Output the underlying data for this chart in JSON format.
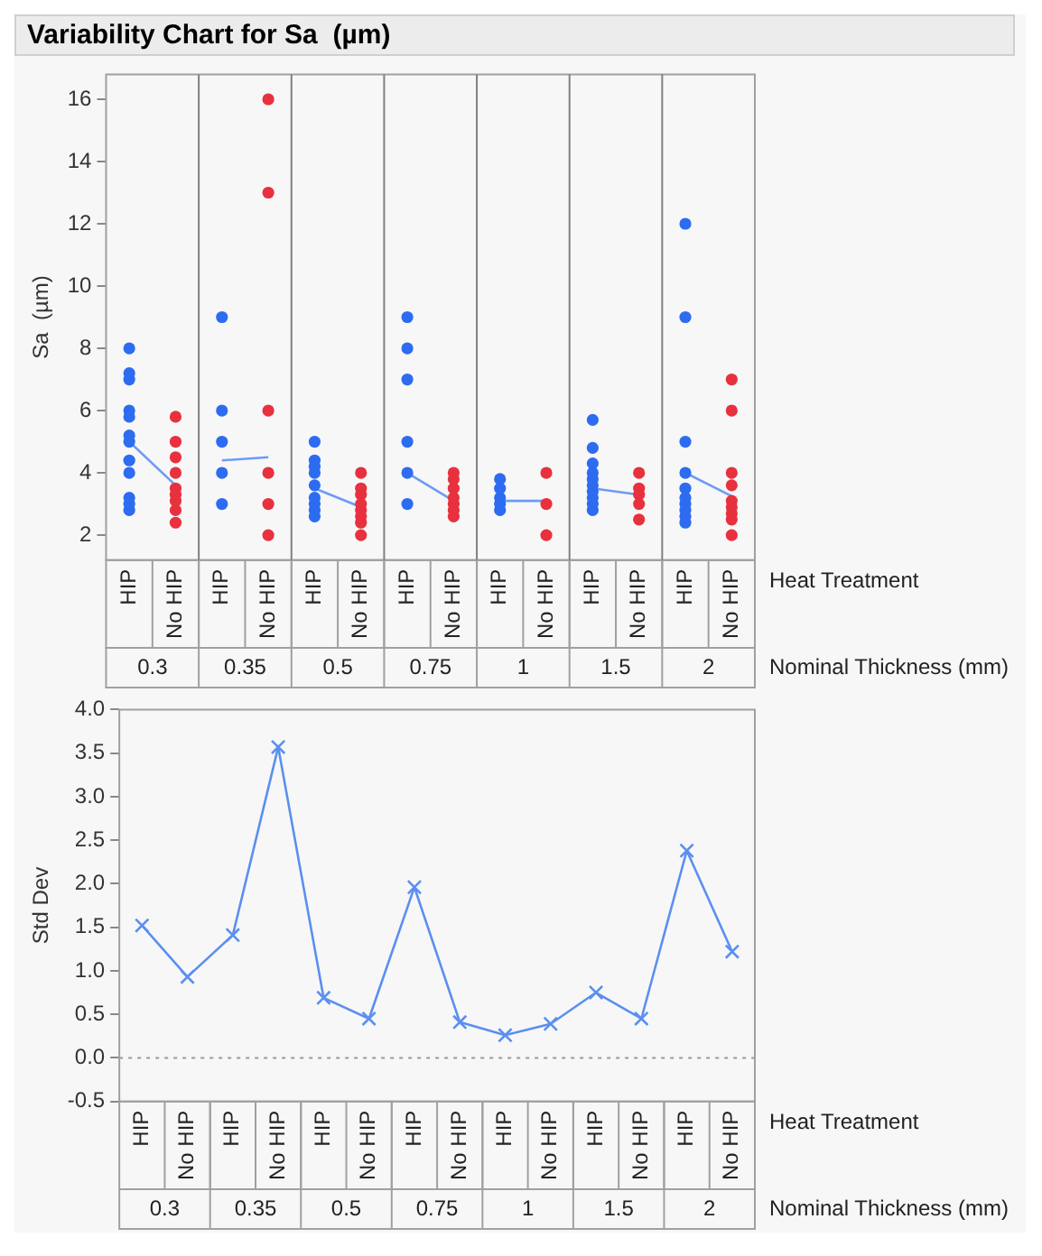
{
  "chart_data": [
    {
      "type": "scatter",
      "title": "Variability Chart for Sa  (µm)",
      "ylabel": "Sa  (µm)",
      "xlabel": "Heat Treatment",
      "categories": [
        "HIP",
        "No HIP",
        "HIP",
        "No HIP",
        "HIP",
        "No HIP",
        "HIP",
        "No HIP",
        "HIP",
        "No HIP",
        "HIP",
        "No HIP",
        "HIP",
        "No HIP"
      ],
      "ylim": [
        1.2,
        16.8
      ],
      "yticks": [
        2,
        4,
        6,
        8,
        10,
        12,
        14,
        16
      ],
      "grid": false,
      "marker": "circle",
      "annotations": [
        "Nominal Thickness (mm)",
        "0.3",
        "0.35",
        "0.5",
        "0.75",
        "1",
        "1.5",
        "2"
      ],
      "series": [
        {
          "colors": [
            "#2d6cf0",
            "#e8313e",
            "#2d6cf0",
            "#e8313e",
            "#2d6cf0",
            "#e8313e",
            "#2d6cf0",
            "#e8313e",
            "#2d6cf0",
            "#e8313e",
            "#2d6cf0",
            "#e8313e",
            "#2d6cf0",
            "#e8313e"
          ],
          "values": [
            8,
            5.8,
            9,
            16,
            5,
            4,
            9,
            4,
            3.8,
            4,
            5.7,
            4,
            12,
            7
          ]
        },
        {
          "colors": [
            "#2d6cf0",
            "#e8313e",
            "#2d6cf0",
            "#e8313e",
            "#2d6cf0",
            "#e8313e",
            "#2d6cf0",
            "#e8313e",
            "#2d6cf0",
            "#e8313e",
            "#2d6cf0",
            "#e8313e",
            "#2d6cf0",
            "#e8313e"
          ],
          "values": [
            7.2,
            5,
            6,
            13,
            4.4,
            3.5,
            8,
            3.8,
            3.5,
            3,
            4.8,
            3.5,
            9,
            6
          ]
        },
        {
          "colors": [
            "#2d6cf0",
            "#e8313e",
            "#2d6cf0",
            "#e8313e",
            "#2d6cf0",
            "#e8313e",
            "#2d6cf0",
            "#e8313e",
            "#2d6cf0",
            "#e8313e",
            "#2d6cf0",
            "#e8313e",
            "#2d6cf0",
            "#e8313e"
          ],
          "values": [
            7,
            4.5,
            5,
            6,
            4.2,
            3.3,
            7,
            3.5,
            3.2,
            2,
            4.3,
            3.3,
            5,
            4
          ]
        },
        {
          "colors": [
            "#2d6cf0",
            "#e8313e",
            "#2d6cf0",
            "#e8313e",
            "#2d6cf0",
            "#e8313e",
            "#2d6cf0",
            "#e8313e",
            "#2d6cf0",
            "#e8313e",
            "#2d6cf0",
            "#e8313e",
            "#2d6cf0",
            "#e8313e"
          ],
          "values": [
            6,
            4,
            4,
            4,
            4,
            3,
            5,
            3.2,
            3,
            null,
            4,
            3,
            4,
            3.6
          ]
        },
        {
          "colors": [
            "#2d6cf0",
            "#e8313e",
            "#2d6cf0",
            "#e8313e",
            "#2d6cf0",
            "#e8313e",
            "#2d6cf0",
            "#e8313e",
            "#2d6cf0",
            "#e8313e",
            "#2d6cf0",
            "#e8313e",
            "#2d6cf0",
            "#e8313e"
          ],
          "values": [
            5.8,
            3.5,
            3,
            3,
            3.6,
            2.8,
            4,
            3,
            2.8,
            null,
            3.8,
            2.5,
            3.5,
            3.1
          ]
        },
        {
          "colors": [
            "#2d6cf0",
            "#e8313e",
            "#2d6cf0",
            "#e8313e",
            "#2d6cf0",
            "#e8313e",
            "#2d6cf0",
            "#e8313e",
            "#2d6cf0",
            "#e8313e",
            "#2d6cf0",
            "#e8313e",
            "#2d6cf0",
            "#e8313e"
          ],
          "values": [
            5.2,
            3.3,
            null,
            2,
            3.2,
            2.6,
            3,
            2.8,
            null,
            null,
            3.6,
            null,
            3.2,
            2.9
          ]
        },
        {
          "colors": [
            "#2d6cf0",
            "#e8313e",
            "#2d6cf0",
            "#e8313e",
            "#2d6cf0",
            "#e8313e",
            "#2d6cf0",
            "#e8313e",
            "#2d6cf0",
            "#e8313e",
            "#2d6cf0",
            "#e8313e",
            "#2d6cf0",
            "#e8313e"
          ],
          "values": [
            5,
            3.1,
            null,
            null,
            3,
            2.4,
            null,
            2.6,
            null,
            null,
            3.4,
            null,
            3,
            2.7
          ]
        },
        {
          "colors": [
            "#2d6cf0",
            "#e8313e",
            "#2d6cf0",
            "#e8313e",
            "#2d6cf0",
            "#e8313e",
            "#2d6cf0",
            "#e8313e",
            "#2d6cf0",
            "#e8313e",
            "#2d6cf0",
            "#e8313e",
            "#2d6cf0",
            "#e8313e"
          ],
          "values": [
            4.4,
            null,
            null,
            null,
            2.8,
            2,
            null,
            null,
            null,
            null,
            3.2,
            null,
            2.8,
            2.5
          ]
        },
        {
          "colors": [
            "#2d6cf0",
            "#e8313e",
            "#2d6cf0",
            "#e8313e",
            "#2d6cf0",
            "#e8313e",
            "#2d6cf0",
            "#e8313e",
            "#2d6cf0",
            "#e8313e",
            "#2d6cf0",
            "#e8313e",
            "#2d6cf0",
            "#e8313e"
          ],
          "values": [
            4,
            2.8,
            null,
            null,
            2.6,
            null,
            null,
            null,
            null,
            null,
            3,
            null,
            2.6,
            2
          ]
        },
        {
          "colors": [
            "#2d6cf0",
            "#e8313e",
            "#2d6cf0",
            "#e8313e",
            "#2d6cf0",
            "#e8313e",
            "#2d6cf0",
            "#e8313e",
            "#2d6cf0",
            "#e8313e",
            "#2d6cf0",
            "#e8313e",
            "#2d6cf0",
            "#e8313e"
          ],
          "values": [
            3.2,
            2.4,
            null,
            null,
            null,
            null,
            null,
            null,
            null,
            null,
            2.8,
            null,
            2.4,
            null
          ]
        },
        {
          "colors": [
            "#2d6cf0",
            "#e8313e",
            "#2d6cf0",
            "#e8313e",
            "#2d6cf0",
            "#e8313e",
            "#2d6cf0",
            "#e8313e",
            "#2d6cf0",
            "#e8313e",
            "#2d6cf0",
            "#e8313e",
            "#2d6cf0",
            "#e8313e"
          ],
          "values": [
            3,
            null,
            null,
            null,
            null,
            null,
            null,
            null,
            null,
            null,
            null,
            null,
            null,
            null
          ]
        },
        {
          "colors": [
            "#2d6cf0",
            "#e8313e",
            "#2d6cf0",
            "#e8313e",
            "#2d6cf0",
            "#e8313e",
            "#2d6cf0",
            "#e8313e",
            "#2d6cf0",
            "#e8313e",
            "#2d6cf0",
            "#e8313e",
            "#2d6cf0",
            "#e8313e"
          ],
          "values": [
            2.8,
            null,
            null,
            null,
            null,
            null,
            null,
            null,
            null,
            null,
            null,
            null,
            null,
            null
          ]
        },
        {
          "type": "line",
          "marker": "none",
          "color": "#6e9bf2",
          "values": [
            5,
            3.6,
            null,
            null,
            null,
            null,
            null,
            null,
            null,
            null,
            null,
            null,
            null,
            null
          ]
        },
        {
          "type": "line",
          "marker": "none",
          "color": "#6e9bf2",
          "values": [
            null,
            null,
            4.4,
            4.5,
            null,
            null,
            null,
            null,
            null,
            null,
            null,
            null,
            null,
            null
          ]
        },
        {
          "type": "line",
          "marker": "none",
          "color": "#6e9bf2",
          "values": [
            null,
            null,
            null,
            null,
            3.5,
            2.9,
            null,
            null,
            null,
            null,
            null,
            null,
            null,
            null
          ]
        },
        {
          "type": "line",
          "marker": "none",
          "color": "#6e9bf2",
          "values": [
            null,
            null,
            null,
            null,
            null,
            null,
            4,
            3.1,
            null,
            null,
            null,
            null,
            null,
            null
          ]
        },
        {
          "type": "line",
          "marker": "none",
          "color": "#6e9bf2",
          "values": [
            null,
            null,
            null,
            null,
            null,
            null,
            null,
            null,
            3.1,
            3.1,
            null,
            null,
            null,
            null
          ]
        },
        {
          "type": "line",
          "marker": "none",
          "color": "#6e9bf2",
          "values": [
            null,
            null,
            null,
            null,
            null,
            null,
            null,
            null,
            null,
            null,
            3.5,
            3.3,
            null,
            null
          ]
        },
        {
          "type": "line",
          "marker": "none",
          "color": "#6e9bf2",
          "values": [
            null,
            null,
            null,
            null,
            null,
            null,
            null,
            null,
            null,
            null,
            null,
            null,
            4,
            3.25
          ]
        }
      ]
    },
    {
      "type": "line",
      "ylabel": "Std Dev",
      "xlabel": "Heat Treatment",
      "categories": [
        "HIP",
        "No HIP",
        "HIP",
        "No HIP",
        "HIP",
        "No HIP",
        "HIP",
        "No HIP",
        "HIP",
        "No HIP",
        "HIP",
        "No HIP",
        "HIP",
        "No HIP"
      ],
      "ylim": [
        -0.5,
        4
      ],
      "yticks": [
        -0.5,
        {
          "value": 0,
          "label": "0.0"
        },
        0.5,
        {
          "value": 1,
          "label": "1.0"
        },
        1.5,
        {
          "value": 2,
          "label": "2.0"
        },
        2.5,
        {
          "value": 3,
          "label": "3.0"
        },
        3.5,
        {
          "value": 4,
          "label": "4.0"
        }
      ],
      "grid": false,
      "marker": "cross",
      "annotations": [
        "Nominal Thickness (mm)",
        "0.3",
        "0.35",
        "0.5",
        "0.75",
        "1",
        "1.5",
        "2"
      ],
      "ref_lines": [
        {
          "axis": "y",
          "value": 0,
          "color": "#999999",
          "line_style": "dotted"
        }
      ],
      "series": [
        {
          "color": "#5b8ff0",
          "values": [
            1.52,
            0.93,
            1.41,
            3.57,
            0.69,
            0.45,
            1.96,
            0.41,
            0.26,
            0.39,
            0.75,
            0.45,
            2.38,
            1.22
          ]
        }
      ]
    }
  ]
}
